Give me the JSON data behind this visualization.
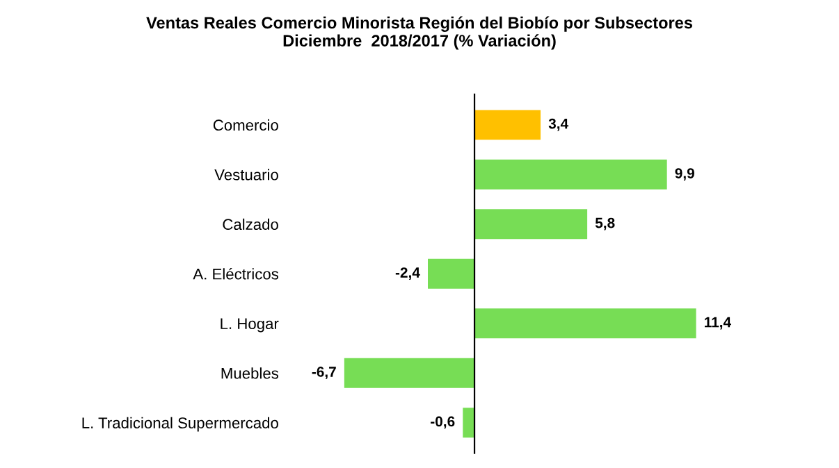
{
  "chart_data": {
    "type": "bar",
    "orientation": "horizontal",
    "title": "Ventas Reales Comercio Minorista Región del Biobío por Subsectores\nDiciembre  2018/2017 (% Variación)",
    "categories": [
      "Comercio",
      "Vestuario",
      "Calzado",
      "A. Eléctricos",
      "L. Hogar",
      "Muebles",
      "L. Tradicional Supermercado"
    ],
    "values": [
      3.4,
      9.9,
      5.8,
      -2.4,
      11.4,
      -6.7,
      -0.6
    ],
    "value_labels": [
      "3,4",
      "9,9",
      "5,8",
      "-2,4",
      "11,4",
      "-6,7",
      "-0,6"
    ],
    "colors": [
      "#ffc000",
      "#77dd55",
      "#77dd55",
      "#77dd55",
      "#77dd55",
      "#77dd55",
      "#77dd55"
    ],
    "tick_labels": "y",
    "grid": false
  }
}
